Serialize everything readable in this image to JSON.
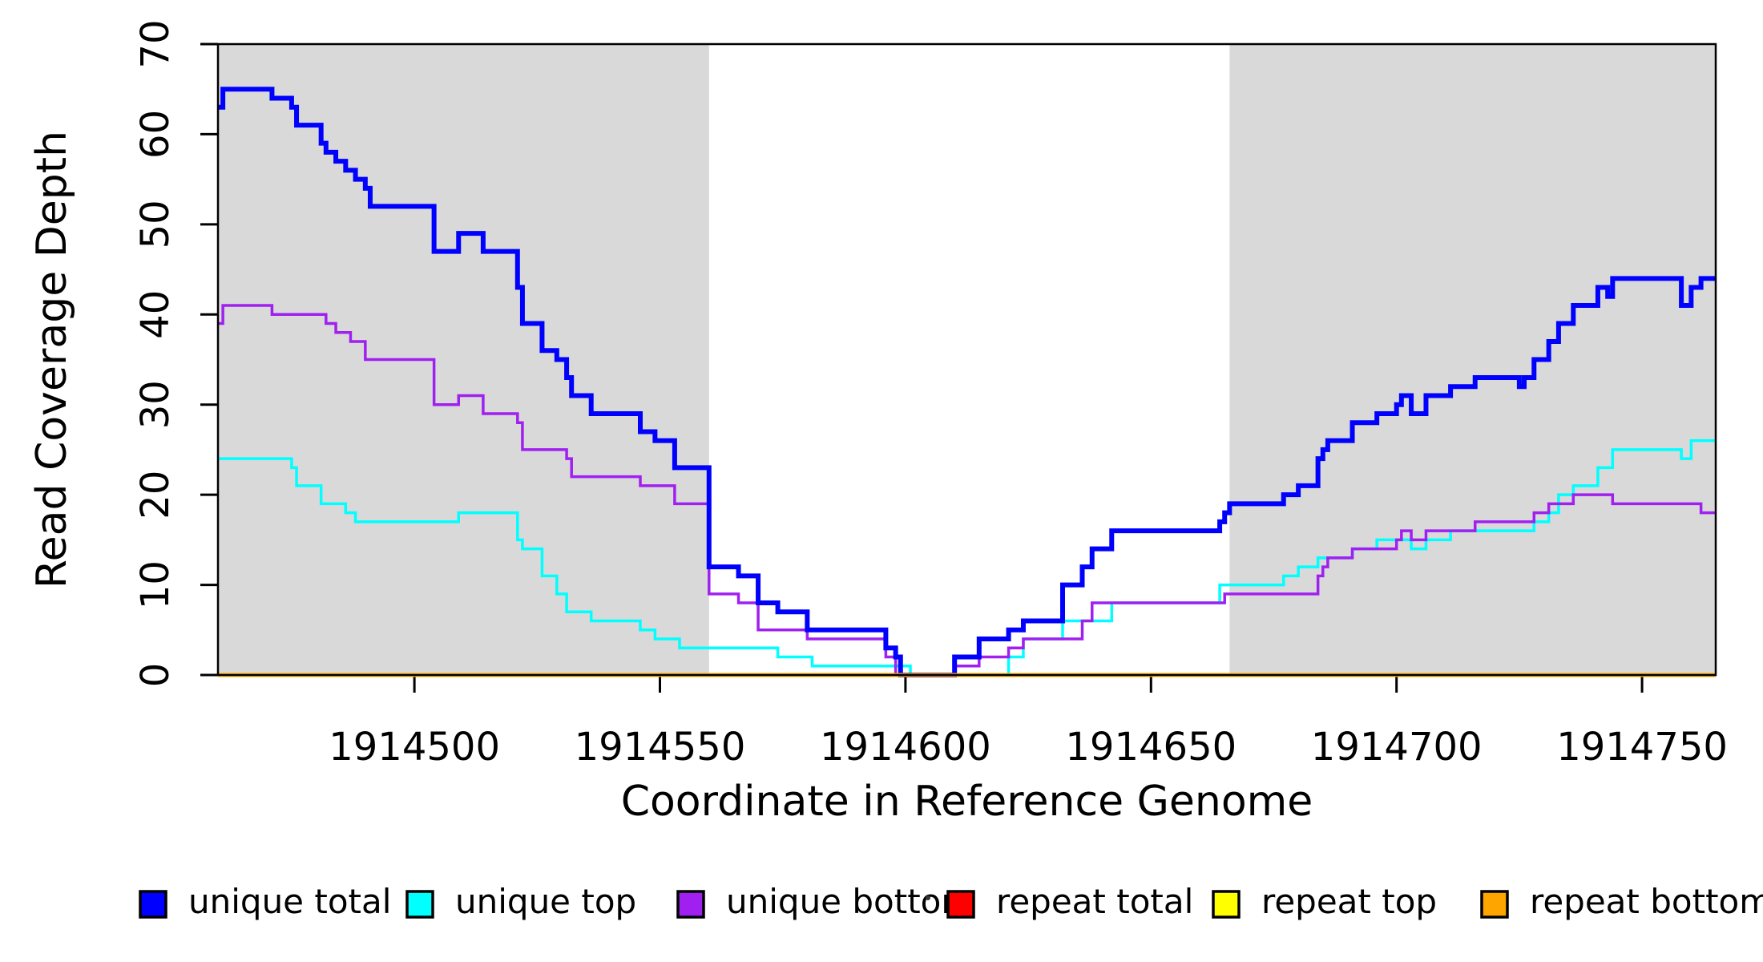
{
  "chart_data": {
    "type": "line",
    "subtype": "step-post",
    "title": "",
    "xlabel": "Coordinate in Reference Genome",
    "ylabel": "Read Coverage Depth",
    "xlim": [
      1914460,
      1914765
    ],
    "ylim": [
      0,
      70
    ],
    "xticks": [
      1914500,
      1914550,
      1914600,
      1914650,
      1914700,
      1914750
    ],
    "yticks": [
      0,
      10,
      20,
      30,
      40,
      50,
      60,
      70
    ],
    "grid": false,
    "background_bands": [
      {
        "name": "left-repeat-shade",
        "x0": 1914460,
        "x1": 1914560
      },
      {
        "name": "right-repeat-shade",
        "x0": 1914666,
        "x1": 1914765
      }
    ],
    "band_color": "#D9D9D9",
    "series": [
      {
        "name": "unique total",
        "color": "#0000FF",
        "width": 6,
        "points": [
          [
            1914460,
            63
          ],
          [
            1914461,
            65
          ],
          [
            1914471,
            64
          ],
          [
            1914475,
            63
          ],
          [
            1914476,
            61
          ],
          [
            1914481,
            59
          ],
          [
            1914482,
            58
          ],
          [
            1914484,
            57
          ],
          [
            1914486,
            56
          ],
          [
            1914488,
            55
          ],
          [
            1914490,
            54
          ],
          [
            1914491,
            52
          ],
          [
            1914504,
            47
          ],
          [
            1914509,
            49
          ],
          [
            1914514,
            47
          ],
          [
            1914521,
            43
          ],
          [
            1914522,
            39
          ],
          [
            1914526,
            36
          ],
          [
            1914529,
            35
          ],
          [
            1914531,
            33
          ],
          [
            1914532,
            31
          ],
          [
            1914536,
            29
          ],
          [
            1914546,
            27
          ],
          [
            1914549,
            26
          ],
          [
            1914553,
            23
          ],
          [
            1914560,
            12
          ],
          [
            1914566,
            11
          ],
          [
            1914570,
            8
          ],
          [
            1914574,
            7
          ],
          [
            1914580,
            5
          ],
          [
            1914596,
            3
          ],
          [
            1914598,
            2
          ],
          [
            1914599,
            0
          ],
          [
            1914610,
            2
          ],
          [
            1914615,
            4
          ],
          [
            1914621,
            5
          ],
          [
            1914624,
            6
          ],
          [
            1914632,
            10
          ],
          [
            1914636,
            12
          ],
          [
            1914638,
            14
          ],
          [
            1914642,
            16
          ],
          [
            1914664,
            17
          ],
          [
            1914665,
            18
          ],
          [
            1914666,
            19
          ],
          [
            1914677,
            20
          ],
          [
            1914680,
            21
          ],
          [
            1914684,
            24
          ],
          [
            1914685,
            25
          ],
          [
            1914686,
            26
          ],
          [
            1914691,
            28
          ],
          [
            1914696,
            29
          ],
          [
            1914700,
            30
          ],
          [
            1914701,
            31
          ],
          [
            1914703,
            29
          ],
          [
            1914706,
            31
          ],
          [
            1914711,
            32
          ],
          [
            1914716,
            33
          ],
          [
            1914725,
            32
          ],
          [
            1914726,
            33
          ],
          [
            1914728,
            35
          ],
          [
            1914731,
            37
          ],
          [
            1914733,
            39
          ],
          [
            1914736,
            41
          ],
          [
            1914741,
            43
          ],
          [
            1914743,
            42
          ],
          [
            1914744,
            44
          ],
          [
            1914758,
            41
          ],
          [
            1914760,
            43
          ],
          [
            1914762,
            44
          ],
          [
            1914765,
            44
          ]
        ]
      },
      {
        "name": "unique top",
        "color": "#00FFFF",
        "width": 3.5,
        "points": [
          [
            1914460,
            24
          ],
          [
            1914475,
            23
          ],
          [
            1914476,
            21
          ],
          [
            1914481,
            19
          ],
          [
            1914486,
            18
          ],
          [
            1914488,
            17
          ],
          [
            1914509,
            18
          ],
          [
            1914521,
            15
          ],
          [
            1914522,
            14
          ],
          [
            1914526,
            11
          ],
          [
            1914529,
            9
          ],
          [
            1914531,
            7
          ],
          [
            1914536,
            6
          ],
          [
            1914546,
            5
          ],
          [
            1914549,
            4
          ],
          [
            1914554,
            3
          ],
          [
            1914574,
            2
          ],
          [
            1914581,
            1
          ],
          [
            1914601,
            0
          ],
          [
            1914621,
            2
          ],
          [
            1914624,
            4
          ],
          [
            1914632,
            6
          ],
          [
            1914642,
            8
          ],
          [
            1914664,
            10
          ],
          [
            1914677,
            11
          ],
          [
            1914680,
            12
          ],
          [
            1914684,
            13
          ],
          [
            1914691,
            14
          ],
          [
            1914696,
            15
          ],
          [
            1914703,
            14
          ],
          [
            1914706,
            15
          ],
          [
            1914711,
            16
          ],
          [
            1914728,
            17
          ],
          [
            1914731,
            18
          ],
          [
            1914733,
            20
          ],
          [
            1914736,
            21
          ],
          [
            1914741,
            23
          ],
          [
            1914744,
            25
          ],
          [
            1914758,
            24
          ],
          [
            1914760,
            26
          ],
          [
            1914765,
            26
          ]
        ]
      },
      {
        "name": "unique bottom",
        "color": "#A020F0",
        "width": 3.5,
        "points": [
          [
            1914460,
            39
          ],
          [
            1914461,
            41
          ],
          [
            1914471,
            40
          ],
          [
            1914482,
            39
          ],
          [
            1914484,
            38
          ],
          [
            1914487,
            37
          ],
          [
            1914490,
            35
          ],
          [
            1914504,
            30
          ],
          [
            1914509,
            31
          ],
          [
            1914514,
            29
          ],
          [
            1914521,
            28
          ],
          [
            1914522,
            25
          ],
          [
            1914531,
            24
          ],
          [
            1914532,
            22
          ],
          [
            1914546,
            21
          ],
          [
            1914553,
            19
          ],
          [
            1914560,
            9
          ],
          [
            1914566,
            8
          ],
          [
            1914570,
            5
          ],
          [
            1914580,
            4
          ],
          [
            1914596,
            2
          ],
          [
            1914598,
            0
          ],
          [
            1914610,
            1
          ],
          [
            1914615,
            2
          ],
          [
            1914621,
            3
          ],
          [
            1914624,
            4
          ],
          [
            1914636,
            6
          ],
          [
            1914638,
            8
          ],
          [
            1914665,
            9
          ],
          [
            1914684,
            11
          ],
          [
            1914685,
            12
          ],
          [
            1914686,
            13
          ],
          [
            1914691,
            14
          ],
          [
            1914700,
            15
          ],
          [
            1914701,
            16
          ],
          [
            1914703,
            15
          ],
          [
            1914706,
            16
          ],
          [
            1914716,
            17
          ],
          [
            1914728,
            18
          ],
          [
            1914731,
            19
          ],
          [
            1914736,
            20
          ],
          [
            1914744,
            19
          ],
          [
            1914762,
            18
          ],
          [
            1914765,
            18
          ]
        ]
      },
      {
        "name": "repeat total",
        "color": "#FF0000",
        "width": 3.5,
        "points": [
          [
            1914460,
            0
          ],
          [
            1914765,
            0
          ]
        ]
      },
      {
        "name": "repeat top",
        "color": "#FFFF00",
        "width": 3.5,
        "points": [
          [
            1914460,
            0
          ],
          [
            1914765,
            0
          ]
        ]
      },
      {
        "name": "repeat bottom",
        "color": "#FFA500",
        "width": 5,
        "points": [
          [
            1914460,
            0
          ],
          [
            1914765,
            0
          ]
        ]
      }
    ],
    "legend": [
      {
        "label": "unique total",
        "color": "#0000FF"
      },
      {
        "label": "unique top",
        "color": "#00FFFF"
      },
      {
        "label": "unique bottom",
        "color": "#A020F0"
      },
      {
        "label": "repeat total",
        "color": "#FF0000"
      },
      {
        "label": "repeat top",
        "color": "#FFFF00"
      },
      {
        "label": "repeat bottom",
        "color": "#FFA500"
      }
    ],
    "legend_position": "bottom"
  }
}
